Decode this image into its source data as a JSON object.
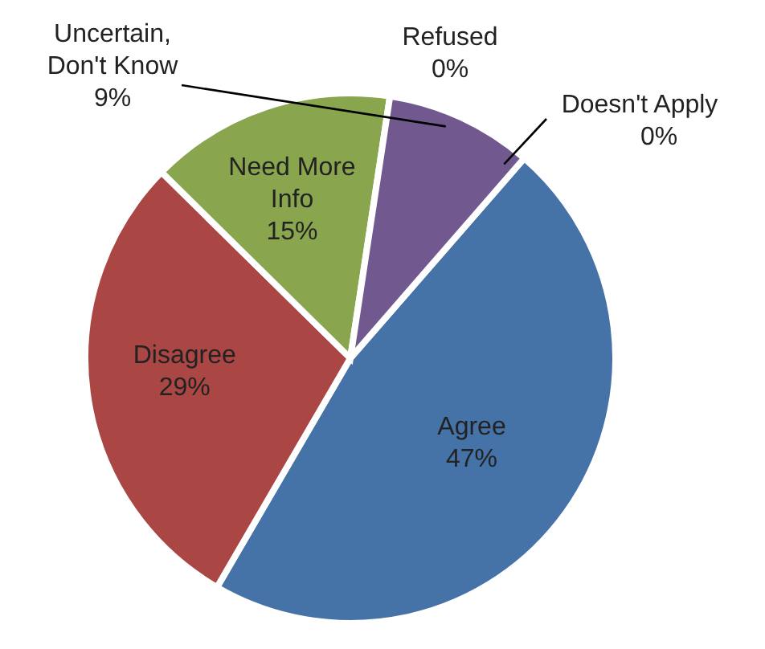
{
  "chart_data": {
    "type": "pie",
    "categories": [
      "Agree",
      "Disagree",
      "Need More Info",
      "Uncertain, Don't Know",
      "Refused",
      "Doesn't Apply"
    ],
    "values": [
      47,
      29,
      15,
      9,
      0,
      0
    ],
    "value_labels": [
      "47%",
      "29%",
      "15%",
      "9%",
      "0%",
      "0%"
    ],
    "colors": [
      "#4572a7",
      "#aa4643",
      "#89a54e",
      "#71588f",
      "#4198af",
      "#db843d"
    ]
  }
}
